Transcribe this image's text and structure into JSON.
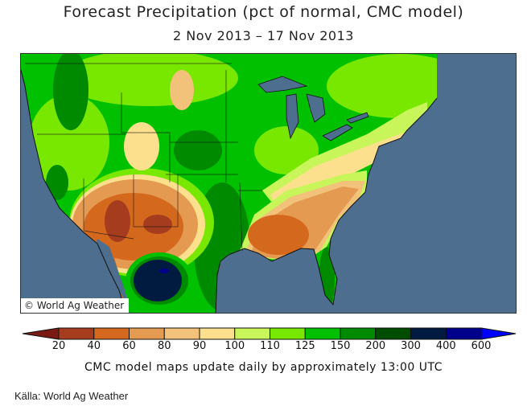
{
  "header": {
    "title": "Forecast Precipitation (pct of normal, CMC model)",
    "subtitle": "2 Nov 2013 – 17 Nov 2013"
  },
  "map": {
    "copyright": "© World Ag Weather",
    "colors": {
      "ocean": "#4d6e8f"
    }
  },
  "legend": {
    "labels": [
      "20",
      "40",
      "60",
      "80",
      "90",
      "100",
      "110",
      "125",
      "150",
      "200",
      "300",
      "400",
      "600"
    ],
    "colors": [
      "#7a1a12",
      "#a63c1e",
      "#d4691e",
      "#e49a50",
      "#f2c27a",
      "#fde08e",
      "#c8f55a",
      "#78e800",
      "#00c000",
      "#008a00",
      "#004c00",
      "#001a40",
      "#00008a",
      "#0000ff"
    ]
  },
  "footer": {
    "note": "CMC model maps update daily by approximately 13:00 UTC",
    "source": "Källa: World Ag Weather"
  }
}
